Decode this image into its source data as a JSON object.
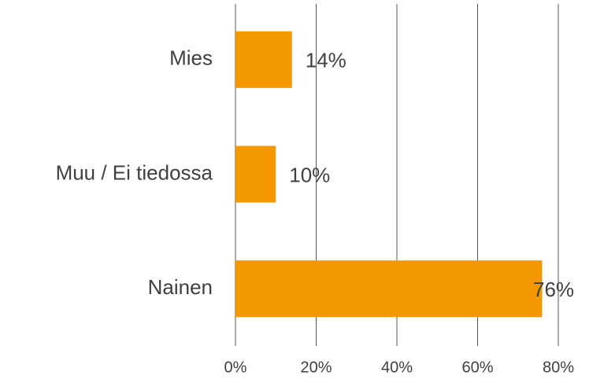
{
  "chart_data": {
    "type": "bar",
    "orientation": "horizontal",
    "categories": [
      "Mies",
      "Muu / Ei tiedossa",
      "Nainen"
    ],
    "values": [
      14,
      10,
      76
    ],
    "value_labels": [
      "14%",
      "10%",
      "76%"
    ],
    "color": "#f39800",
    "xlim": [
      0,
      80
    ],
    "xticks": [
      {
        "value": 0,
        "label": "0%"
      },
      {
        "value": 20,
        "label": "20%"
      },
      {
        "value": 40,
        "label": "40%"
      },
      {
        "value": 60,
        "label": "60%"
      },
      {
        "value": 80,
        "label": "80%"
      }
    ],
    "grid": true
  }
}
